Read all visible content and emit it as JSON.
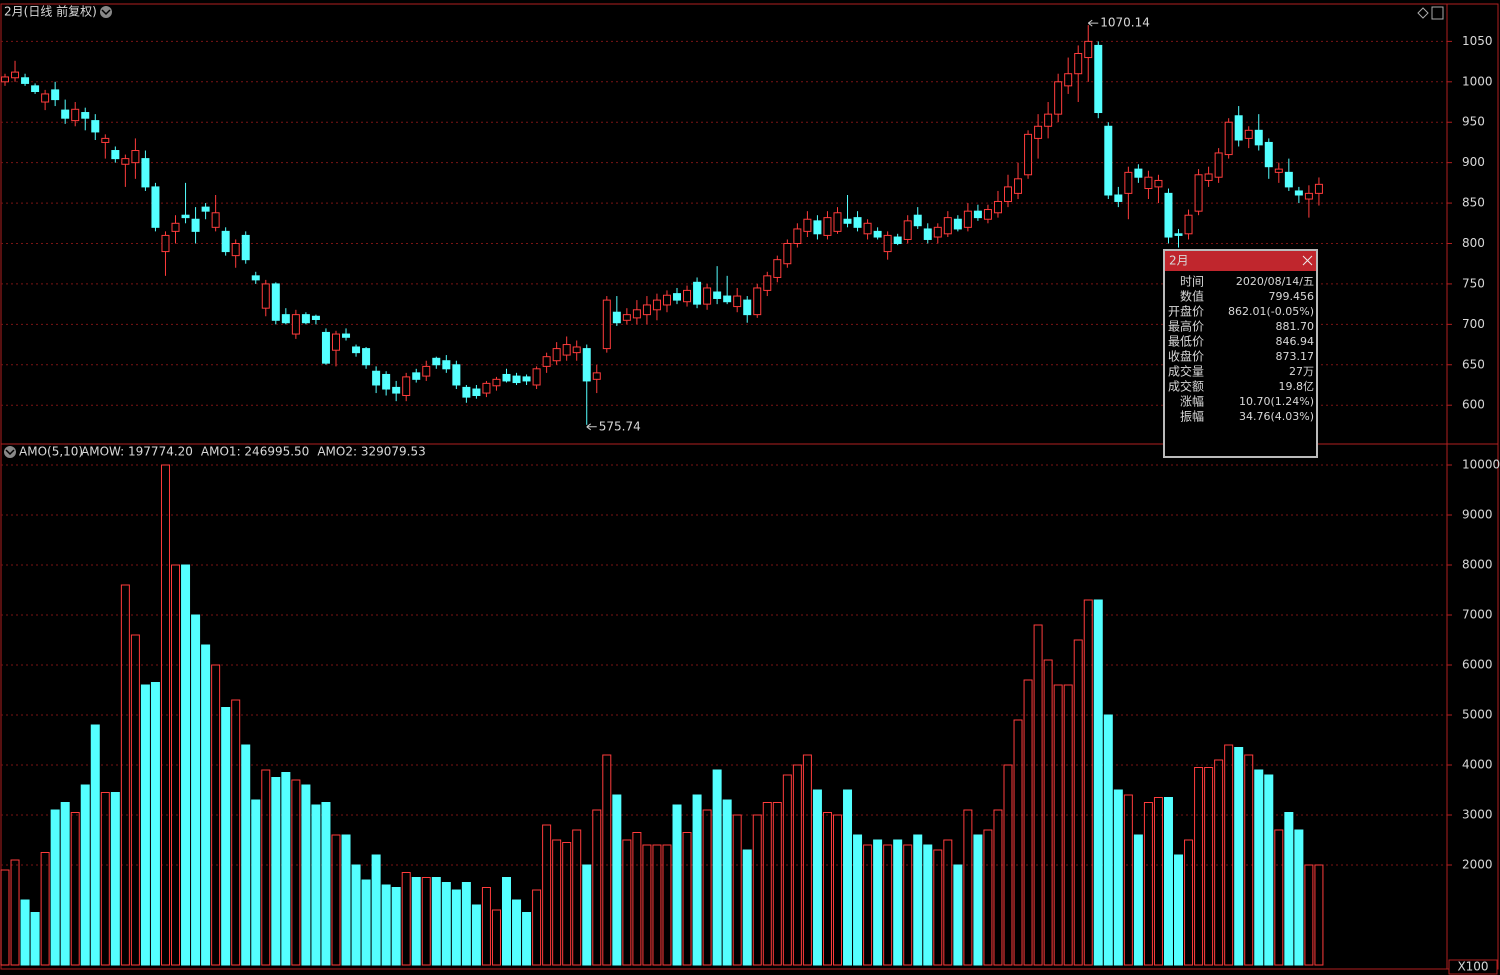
{
  "chart_data": [
    {
      "type": "candlestick",
      "title": "2月(日线 前复权)",
      "open": [
        1000,
        1005,
        1005,
        995,
        975,
        990,
        965,
        952,
        962,
        952,
        925,
        915,
        898,
        900,
        905,
        870,
        790,
        815,
        835,
        830,
        845,
        820,
        815,
        785,
        810,
        760,
        720,
        750,
        712,
        688,
        712,
        710,
        690,
        668,
        688,
        672,
        670,
        642,
        638,
        622,
        612,
        640,
        636,
        658,
        655,
        650,
        622,
        620,
        615,
        624,
        638,
        636,
        635,
        625,
        648,
        655,
        662,
        665,
        670,
        632,
        670,
        715,
        705,
        708,
        712,
        718,
        724,
        738,
        728,
        752,
        725,
        740,
        735,
        722,
        730,
        712,
        742,
        758,
        775,
        800,
        815,
        828,
        810,
        815,
        830,
        832,
        812,
        815,
        790,
        808,
        805,
        835,
        818,
        808,
        812,
        830,
        820,
        840,
        830,
        838,
        852,
        862,
        885,
        930,
        945,
        960,
        995,
        1010,
        1030,
        1045,
        945,
        860,
        862,
        892,
        868,
        870,
        862,
        812,
        812,
        840,
        878,
        882,
        910,
        958,
        930,
        940,
        925,
        888,
        888,
        865,
        855,
        862.01
      ],
      "high": [
        1010,
        1026,
        1010,
        998,
        990,
        1000,
        978,
        975,
        968,
        960,
        935,
        920,
        910,
        930,
        915,
        875,
        815,
        835,
        875,
        845,
        850,
        860,
        820,
        805,
        815,
        765,
        755,
        752,
        720,
        718,
        715,
        712,
        695,
        692,
        695,
        675,
        672,
        648,
        642,
        630,
        640,
        645,
        655,
        660,
        662,
        655,
        625,
        625,
        630,
        635,
        645,
        640,
        638,
        648,
        665,
        678,
        685,
        680,
        675,
        650,
        735,
        735,
        720,
        730,
        735,
        738,
        742,
        745,
        748,
        758,
        750,
        772,
        760,
        745,
        735,
        750,
        765,
        785,
        805,
        825,
        840,
        835,
        840,
        845,
        860,
        840,
        830,
        820,
        815,
        812,
        835,
        845,
        825,
        825,
        840,
        835,
        850,
        848,
        848,
        865,
        885,
        900,
        940,
        960,
        975,
        1010,
        1030,
        1045,
        1070.14,
        1050,
        950,
        870,
        895,
        898,
        890,
        885,
        868,
        818,
        842,
        892,
        895,
        918,
        955,
        970,
        945,
        960,
        930,
        900,
        905,
        870,
        872,
        881.7
      ],
      "low": [
        995,
        1000,
        995,
        985,
        965,
        970,
        948,
        945,
        940,
        928,
        905,
        900,
        870,
        880,
        865,
        815,
        760,
        800,
        825,
        800,
        830,
        815,
        785,
        770,
        775,
        750,
        710,
        700,
        700,
        682,
        700,
        700,
        650,
        648,
        680,
        660,
        645,
        615,
        612,
        605,
        605,
        628,
        630,
        645,
        640,
        620,
        603,
        608,
        610,
        618,
        628,
        625,
        625,
        620,
        640,
        650,
        655,
        655,
        575.74,
        615,
        665,
        698,
        700,
        700,
        700,
        705,
        715,
        725,
        722,
        720,
        718,
        725,
        725,
        715,
        702,
        708,
        735,
        752,
        770,
        795,
        808,
        805,
        805,
        812,
        820,
        815,
        805,
        805,
        780,
        798,
        800,
        818,
        800,
        800,
        808,
        815,
        815,
        828,
        825,
        832,
        845,
        855,
        880,
        905,
        930,
        950,
        985,
        975,
        1000,
        955,
        855,
        845,
        830,
        875,
        855,
        850,
        800,
        795,
        805,
        835,
        870,
        875,
        905,
        920,
        918,
        915,
        880,
        875,
        865,
        850,
        832,
        846.94
      ],
      "close": [
        1006,
        1012,
        998,
        988,
        985,
        978,
        955,
        966,
        955,
        938,
        930,
        905,
        905,
        915,
        870,
        820,
        810,
        825,
        832,
        815,
        840,
        838,
        790,
        800,
        780,
        755,
        750,
        705,
        702,
        712,
        702,
        706,
        652,
        688,
        684,
        665,
        650,
        625,
        620,
        615,
        635,
        632,
        648,
        650,
        645,
        625,
        610,
        612,
        627,
        632,
        630,
        628,
        630,
        645,
        660,
        670,
        675,
        672,
        630,
        640,
        730,
        702,
        712,
        718,
        724,
        730,
        736,
        730,
        742,
        725,
        745,
        732,
        728,
        735,
        712,
        745,
        760,
        780,
        800,
        818,
        830,
        812,
        832,
        838,
        825,
        820,
        825,
        808,
        810,
        800,
        828,
        822,
        805,
        820,
        832,
        818,
        840,
        832,
        842,
        852,
        870,
        880,
        935,
        945,
        960,
        1000,
        1010,
        1035,
        1050,
        962,
        860,
        852,
        888,
        882,
        882,
        878,
        808,
        810,
        835,
        885,
        886,
        912,
        950,
        928,
        940,
        922,
        895,
        892,
        870,
        860,
        862,
        873.17
      ],
      "ylim": [
        552,
        1095
      ],
      "yticks": [
        600,
        650,
        700,
        750,
        800,
        850,
        900,
        950,
        1000,
        1050
      ],
      "up_color": "#ff3c3c",
      "down_color": "#54ffff",
      "grid": true
    },
    {
      "type": "bar",
      "title": "AMO(5,10)",
      "indicators": [
        {
          "name": "AMOW: 197774.20",
          "color": "#ffffff"
        },
        {
          "name": "AMO1: 246995.50",
          "color": "#ffffff"
        },
        {
          "name": "AMO2: 329079.53",
          "color": "#ffff33"
        }
      ],
      "values": [
        1900,
        2100,
        1300,
        1050,
        2250,
        3100,
        3250,
        3050,
        3600,
        4800,
        3450,
        3450,
        7600,
        6600,
        5600,
        5650,
        10000,
        8000,
        8000,
        7000,
        6400,
        6000,
        5150,
        5300,
        4400,
        3300,
        3900,
        3750,
        3850,
        3700,
        3600,
        3200,
        3250,
        2600,
        2600,
        2000,
        1700,
        2200,
        1600,
        1550,
        1850,
        1750,
        1750,
        1750,
        1650,
        1500,
        1650,
        1200,
        1550,
        1100,
        1750,
        1300,
        1050,
        1500,
        2800,
        2500,
        2450,
        2700,
        2000,
        3100,
        4200,
        3400,
        2500,
        2650,
        2400,
        2400,
        2400,
        3200,
        2650,
        3400,
        3100,
        3900,
        3300,
        3000,
        2300,
        3000,
        3250,
        3250,
        3800,
        4000,
        4200,
        3500,
        3050,
        3000,
        3500,
        2600,
        2400,
        2500,
        2400,
        2500,
        2400,
        2600,
        2400,
        2300,
        2500,
        2000,
        3100,
        2600,
        2700,
        3100,
        4000,
        4900,
        5700,
        6800,
        6100,
        5600,
        5600,
        6500,
        7300,
        7300,
        5000,
        3500,
        3400,
        2600,
        3250,
        3350,
        3350,
        2200,
        2500,
        3950,
        3950,
        4100,
        4400,
        4350,
        4200,
        3900,
        3800,
        2700,
        3050,
        2700,
        2000,
        2000
      ],
      "ylim": [
        0,
        10360
      ],
      "yticks": [
        2000,
        3000,
        4000,
        5000,
        6000,
        7000,
        8000,
        9000,
        10000
      ],
      "unit_label": "X100",
      "grid": true
    }
  ],
  "tooltip": {
    "title": "2月",
    "rows": [
      {
        "label": "时间",
        "value": "2020/08/14/五",
        "color": "#e0e0e0"
      },
      {
        "label": "数值",
        "value": "799.456",
        "color": "#e0e0e0"
      },
      {
        "label": "开盘价",
        "value": "862.01(-0.05%)",
        "color": "#3cdc3c"
      },
      {
        "label": "最高价",
        "value": "881.70",
        "color": "#ff4040"
      },
      {
        "label": "最低价",
        "value": "846.94",
        "color": "#3cdc3c"
      },
      {
        "label": "收盘价",
        "value": "873.17",
        "color": "#ff4040"
      },
      {
        "label": "成交量",
        "value": "27万",
        "color": "#e0e0e0"
      },
      {
        "label": "成交额",
        "value": "19.8亿",
        "color": "#e0e0e0"
      },
      {
        "label": "涨幅",
        "value": "10.70(1.24%)",
        "color": "#ff4040"
      },
      {
        "label": "振幅",
        "value": "34.76(4.03%)",
        "color": "#e0e0e0"
      }
    ]
  }
}
